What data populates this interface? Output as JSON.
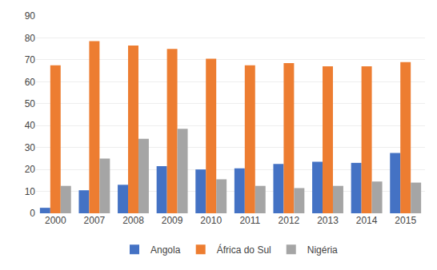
{
  "chart_data": {
    "type": "bar",
    "categories": [
      "2000",
      "2007",
      "2008",
      "2009",
      "2010",
      "2011",
      "2012",
      "2013",
      "2014",
      "2015"
    ],
    "series": [
      {
        "name": "Angola",
        "color": "#4472C4",
        "values": [
          2.5,
          10.5,
          13.0,
          21.5,
          20.0,
          20.5,
          22.5,
          23.5,
          23.0,
          27.5
        ]
      },
      {
        "name": "África do Sul",
        "color": "#ED7D31",
        "values": [
          67.5,
          78.5,
          76.5,
          75.0,
          70.5,
          67.5,
          68.5,
          67.0,
          67.0,
          69.0
        ]
      },
      {
        "name": "Nigéria",
        "color": "#A5A5A5",
        "values": [
          12.5,
          25.0,
          34.0,
          38.5,
          15.5,
          12.5,
          11.5,
          12.5,
          14.5,
          14.0
        ]
      }
    ],
    "ylim": [
      0,
      90
    ],
    "yticks": [
      0,
      10,
      20,
      30,
      40,
      50,
      60,
      70,
      80,
      90
    ],
    "grid": true,
    "legend": "bottom"
  }
}
